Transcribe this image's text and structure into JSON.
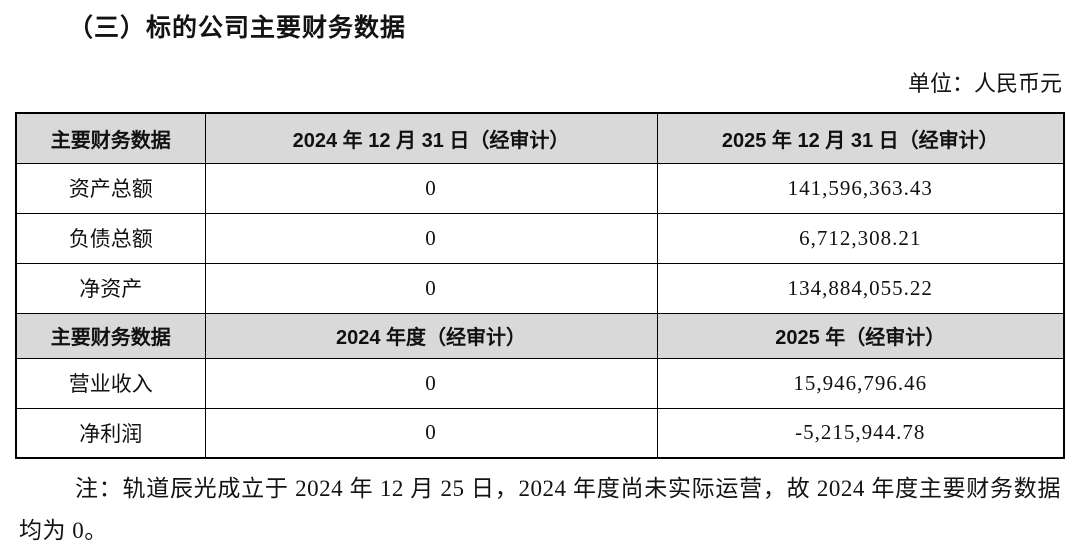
{
  "page": {
    "title": "（三）标的公司主要财务数据",
    "unit_label": "单位：人民币元",
    "note": "注：轨道辰光成立于 2024 年 12 月 25 日，2024 年度尚未实际运营，故 2024 年度主要财务数据均为 0。"
  },
  "table": {
    "sections": [
      {
        "header": [
          "主要财务数据",
          "2024 年 12 月 31 日（经审计）",
          "2025 年 12 月 31 日（经审计）"
        ],
        "rows": [
          [
            "资产总额",
            "0",
            "141,596,363.43"
          ],
          [
            "负债总额",
            "0",
            "6,712,308.21"
          ],
          [
            "净资产",
            "0",
            "134,884,055.22"
          ]
        ]
      },
      {
        "header": [
          "主要财务数据",
          "2024 年度（经审计）",
          "2025 年（经审计）"
        ],
        "rows": [
          [
            "营业收入",
            "0",
            "15,946,796.46"
          ],
          [
            "净利润",
            "0",
            "-5,215,944.78"
          ]
        ]
      }
    ]
  },
  "colors": {
    "header_bg": "#d9d9d9",
    "border": "#000000",
    "text": "#111111"
  }
}
